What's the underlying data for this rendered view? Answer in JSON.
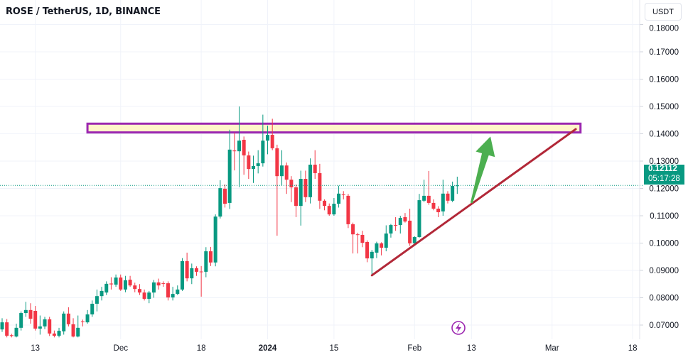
{
  "header": {
    "title": "ROSE / TetherUS, 1D, BINANCE",
    "currency_button": "USDT"
  },
  "price_tag": {
    "price": "0.12112",
    "countdown": "05:17:28"
  },
  "colors": {
    "up": "#089981",
    "down": "#f23645",
    "zone_border": "#9c27b0",
    "zone_fill": "#fff3c0",
    "trendline": "#b22838",
    "arrow": "#4caf50",
    "icon": "#9c27b0"
  },
  "chart_data": {
    "type": "candlestick",
    "title": "ROSE / TetherUS, 1D, BINANCE",
    "start_date": "2023-11-06",
    "interval": "1D",
    "ylim": [
      0.065,
      0.182
    ],
    "y_ticks": [
      "0.07000",
      "0.08000",
      "0.09000",
      "0.10000",
      "0.11000",
      "0.12000",
      "0.13000",
      "0.14000",
      "0.15000",
      "0.16000",
      "0.17000",
      "0.18000"
    ],
    "y_tick_values": [
      0.07,
      0.08,
      0.09,
      0.1,
      0.11,
      0.12,
      0.13,
      0.14,
      0.15,
      0.16,
      0.17,
      0.18
    ],
    "x_ticks": [
      {
        "label": "13",
        "day_index": 7,
        "bold": false
      },
      {
        "label": "Dec",
        "day_index": 25,
        "bold": false
      },
      {
        "label": "18",
        "day_index": 42,
        "bold": false
      },
      {
        "label": "2024",
        "day_index": 56,
        "bold": true
      },
      {
        "label": "15",
        "day_index": 70,
        "bold": false
      },
      {
        "label": "Feb",
        "day_index": 87,
        "bold": false
      },
      {
        "label": "13",
        "day_index": 99,
        "bold": false
      },
      {
        "label": "Mar",
        "day_index": 116,
        "bold": false
      },
      {
        "label": "18",
        "day_index": 133,
        "bold": false
      }
    ],
    "last_price": 0.12112,
    "ohlc": [
      [
        0.0684,
        0.0725,
        0.0675,
        0.071
      ],
      [
        0.071,
        0.0722,
        0.0655,
        0.0661
      ],
      [
        0.0663,
        0.0668,
        0.0655,
        0.066
      ],
      [
        0.0658,
        0.0705,
        0.0655,
        0.069
      ],
      [
        0.069,
        0.075,
        0.068,
        0.0744
      ],
      [
        0.0744,
        0.0785,
        0.073,
        0.0755
      ],
      [
        0.0755,
        0.078,
        0.0705,
        0.0723
      ],
      [
        0.0752,
        0.077,
        0.068,
        0.0687
      ],
      [
        0.0687,
        0.0735,
        0.0665,
        0.0695
      ],
      [
        0.0695,
        0.073,
        0.0685,
        0.0721
      ],
      [
        0.0721,
        0.073,
        0.066,
        0.0669
      ],
      [
        0.0669,
        0.068,
        0.0655,
        0.0661
      ],
      [
        0.0661,
        0.069,
        0.0655,
        0.0679
      ],
      [
        0.0677,
        0.075,
        0.0665,
        0.0742
      ],
      [
        0.0742,
        0.0765,
        0.0695,
        0.0703
      ],
      [
        0.0703,
        0.0725,
        0.0655,
        0.0658
      ],
      [
        0.0658,
        0.0735,
        0.0655,
        0.069
      ],
      [
        0.0713,
        0.072,
        0.0695,
        0.0711
      ],
      [
        0.071,
        0.0755,
        0.0705,
        0.0739
      ],
      [
        0.0739,
        0.079,
        0.073,
        0.0778
      ],
      [
        0.0778,
        0.083,
        0.075,
        0.0806
      ],
      [
        0.0806,
        0.084,
        0.079,
        0.0825
      ],
      [
        0.0819,
        0.086,
        0.081,
        0.0851
      ],
      [
        0.0852,
        0.0875,
        0.083,
        0.0849
      ],
      [
        0.0848,
        0.0885,
        0.084,
        0.0874
      ],
      [
        0.0874,
        0.0885,
        0.0825,
        0.083
      ],
      [
        0.083,
        0.088,
        0.082,
        0.0864
      ],
      [
        0.0866,
        0.088,
        0.084,
        0.0845
      ],
      [
        0.0845,
        0.0855,
        0.082,
        0.0832
      ],
      [
        0.0832,
        0.085,
        0.081,
        0.0819
      ],
      [
        0.0819,
        0.083,
        0.079,
        0.0796
      ],
      [
        0.0796,
        0.0825,
        0.078,
        0.0819
      ],
      [
        0.0819,
        0.0865,
        0.08,
        0.0856
      ],
      [
        0.0856,
        0.087,
        0.083,
        0.0845
      ],
      [
        0.0853,
        0.086,
        0.084,
        0.0851
      ],
      [
        0.0853,
        0.086,
        0.079,
        0.0801
      ],
      [
        0.0801,
        0.084,
        0.079,
        0.0814
      ],
      [
        0.0814,
        0.0845,
        0.081,
        0.083
      ],
      [
        0.083,
        0.0945,
        0.0825,
        0.0934
      ],
      [
        0.0934,
        0.0965,
        0.086,
        0.0871
      ],
      [
        0.0871,
        0.0925,
        0.085,
        0.0908
      ],
      [
        0.0908,
        0.0915,
        0.088,
        0.0895
      ],
      [
        0.0896,
        0.0916,
        0.0804,
        0.0895
      ],
      [
        0.0895,
        0.0985,
        0.0875,
        0.097
      ],
      [
        0.097,
        0.0986,
        0.0916,
        0.0929
      ],
      [
        0.0929,
        0.1105,
        0.0915,
        0.1097
      ],
      [
        0.1097,
        0.123,
        0.109,
        0.1201
      ],
      [
        0.1199,
        0.1215,
        0.113,
        0.1144
      ],
      [
        0.1147,
        0.1415,
        0.1125,
        0.1342
      ],
      [
        0.1339,
        0.1404,
        0.1266,
        0.1336
      ],
      [
        0.1336,
        0.15,
        0.1205,
        0.1375
      ],
      [
        0.1378,
        0.139,
        0.125,
        0.1321
      ],
      [
        0.1321,
        0.1335,
        0.1235,
        0.1271
      ],
      [
        0.1271,
        0.132,
        0.122,
        0.1282
      ],
      [
        0.1282,
        0.134,
        0.1255,
        0.1292
      ],
      [
        0.1292,
        0.147,
        0.128,
        0.1375
      ],
      [
        0.1375,
        0.143,
        0.1325,
        0.1396
      ],
      [
        0.1396,
        0.1455,
        0.134,
        0.1347
      ],
      [
        0.1347,
        0.136,
        0.1027,
        0.1245
      ],
      [
        0.1245,
        0.134,
        0.121,
        0.1284
      ],
      [
        0.1284,
        0.1295,
        0.118,
        0.1232
      ],
      [
        0.1232,
        0.1245,
        0.115,
        0.1204
      ],
      [
        0.1204,
        0.1215,
        0.1095,
        0.1136
      ],
      [
        0.1136,
        0.1265,
        0.1064,
        0.1235
      ],
      [
        0.1235,
        0.1265,
        0.115,
        0.1168
      ],
      [
        0.1168,
        0.131,
        0.1145,
        0.1287
      ],
      [
        0.1287,
        0.134,
        0.1235,
        0.1256
      ],
      [
        0.1256,
        0.129,
        0.1125,
        0.1155
      ],
      [
        0.1155,
        0.116,
        0.112,
        0.1136
      ],
      [
        0.1136,
        0.1145,
        0.11,
        0.1105
      ],
      [
        0.1105,
        0.1165,
        0.11,
        0.1144
      ],
      [
        0.1144,
        0.121,
        0.113,
        0.1181
      ],
      [
        0.1178,
        0.119,
        0.116,
        0.1176
      ],
      [
        0.1173,
        0.118,
        0.1055,
        0.1069
      ],
      [
        0.1069,
        0.1075,
        0.0962,
        0.1032
      ],
      [
        0.1032,
        0.1038,
        0.0962,
        0.103
      ],
      [
        0.103,
        0.1045,
        0.0985,
        0.1001
      ],
      [
        0.1004,
        0.101,
        0.093,
        0.0944
      ],
      [
        0.0944,
        0.0975,
        0.0882,
        0.0968
      ],
      [
        0.0965,
        0.1005,
        0.0945,
        0.0999
      ],
      [
        0.0999,
        0.1003,
        0.0955,
        0.0983
      ],
      [
        0.0983,
        0.1065,
        0.097,
        0.1035
      ],
      [
        0.1035,
        0.107,
        0.102,
        0.1066
      ],
      [
        0.1066,
        0.1095,
        0.1045,
        0.1064
      ],
      [
        0.1066,
        0.11,
        0.1035,
        0.1092
      ],
      [
        0.1095,
        0.111,
        0.1075,
        0.1079
      ],
      [
        0.1082,
        0.1126,
        0.099,
        0.0999
      ],
      [
        0.0999,
        0.1025,
        0.0995,
        0.1022
      ],
      [
        0.1022,
        0.118,
        0.102,
        0.1157
      ],
      [
        0.1155,
        0.1232,
        0.115,
        0.1173
      ],
      [
        0.1173,
        0.1264,
        0.114,
        0.1147
      ],
      [
        0.1147,
        0.116,
        0.112,
        0.1126
      ],
      [
        0.1126,
        0.1135,
        0.1095,
        0.1113
      ],
      [
        0.1116,
        0.1232,
        0.11,
        0.1181
      ],
      [
        0.1181,
        0.119,
        0.1145,
        0.1155
      ],
      [
        0.1155,
        0.1225,
        0.115,
        0.1209
      ],
      [
        0.1209,
        0.1243,
        0.118,
        0.1211
      ]
    ],
    "annotations": {
      "resistance_zone": {
        "top": 0.1437,
        "bottom": 0.1405,
        "from_day": 18,
        "to_day": 122
      },
      "trendline": {
        "from": {
          "day": 78,
          "price": 0.0882
        },
        "to": {
          "day": 121,
          "price": 0.1417
        }
      },
      "arrow": {
        "from": {
          "day": 99,
          "price": 0.1147
        },
        "to": {
          "day": 103,
          "price": 0.139
        }
      }
    }
  }
}
